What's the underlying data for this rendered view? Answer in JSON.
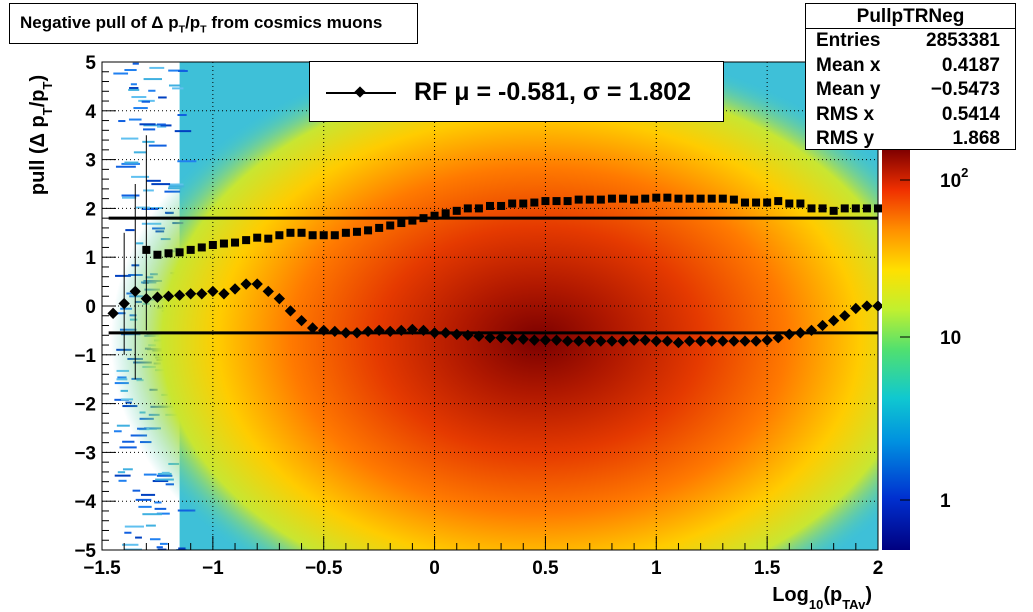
{
  "title": "Negative pull of Δ p_T/p_T from cosmics muons",
  "stats": {
    "name": "PullpTRNeg",
    "rows": [
      {
        "label": "Entries",
        "value": "2853381"
      },
      {
        "label": "Mean x",
        "value": "0.4187"
      },
      {
        "label": "Mean y",
        "value": "−0.5473"
      },
      {
        "label": "RMS x",
        "value": "0.5414"
      },
      {
        "label": "RMS y",
        "value": "1.868"
      }
    ]
  },
  "legend": {
    "text": "RF μ = -0.581, σ =   1.802"
  },
  "colors": {
    "marker": "#000000",
    "line": "#000000"
  },
  "chart_data": {
    "type": "heatmap",
    "title": "Negative pull of Δ p_T/p_T from cosmics muons",
    "xlabel": "Log10(pTAv)",
    "ylabel": "pull (Δ pT/pT)",
    "xlim": [
      -1.5,
      2
    ],
    "ylim": [
      -5,
      5
    ],
    "x_ticks": [
      "−1.5",
      "−1",
      "−0.5",
      "0",
      "0.5",
      "1",
      "1.5",
      "2"
    ],
    "y_ticks": [
      "−5",
      "−4",
      "−3",
      "−2",
      "−1",
      "0",
      "1",
      "2",
      "3",
      "4",
      "5"
    ],
    "colorbar": {
      "scale": "log",
      "labels": [
        "1",
        "10",
        "10^2"
      ]
    },
    "grid": true,
    "horizontal_lines": [
      1.8,
      -0.55
    ],
    "series": [
      {
        "marker": "square",
        "x": [
          -1.3,
          -1.25,
          -1.2,
          -1.15,
          -1.1,
          -1.05,
          -1.0,
          -0.95,
          -0.9,
          -0.85,
          -0.8,
          -0.75,
          -0.7,
          -0.65,
          -0.6,
          -0.55,
          -0.5,
          -0.45,
          -0.4,
          -0.35,
          -0.3,
          -0.25,
          -0.2,
          -0.15,
          -0.1,
          -0.05,
          0.0,
          0.05,
          0.1,
          0.15,
          0.2,
          0.25,
          0.3,
          0.35,
          0.4,
          0.45,
          0.5,
          0.55,
          0.6,
          0.65,
          0.7,
          0.75,
          0.8,
          0.85,
          0.9,
          0.95,
          1.0,
          1.05,
          1.1,
          1.15,
          1.2,
          1.25,
          1.3,
          1.35,
          1.4,
          1.45,
          1.5,
          1.55,
          1.6,
          1.65,
          1.7,
          1.75,
          1.8,
          1.85,
          1.9,
          1.95,
          2.0
        ],
        "y": [
          1.15,
          1.05,
          1.08,
          1.1,
          1.15,
          1.2,
          1.25,
          1.28,
          1.3,
          1.35,
          1.4,
          1.38,
          1.45,
          1.5,
          1.5,
          1.45,
          1.45,
          1.45,
          1.5,
          1.52,
          1.55,
          1.6,
          1.65,
          1.7,
          1.75,
          1.8,
          1.85,
          1.9,
          1.95,
          2.0,
          2.0,
          2.05,
          2.05,
          2.1,
          2.1,
          2.12,
          2.15,
          2.15,
          2.15,
          2.18,
          2.18,
          2.18,
          2.2,
          2.2,
          2.18,
          2.2,
          2.22,
          2.22,
          2.2,
          2.2,
          2.2,
          2.2,
          2.2,
          2.18,
          2.12,
          2.12,
          2.12,
          2.15,
          2.1,
          2.1,
          2.0,
          2.0,
          1.95,
          2.0,
          2.0,
          2.0,
          2.0
        ]
      },
      {
        "marker": "diamond",
        "x": [
          -1.45,
          -1.4,
          -1.35,
          -1.3,
          -1.25,
          -1.2,
          -1.15,
          -1.1,
          -1.05,
          -1.0,
          -0.95,
          -0.9,
          -0.85,
          -0.8,
          -0.75,
          -0.7,
          -0.65,
          -0.6,
          -0.55,
          -0.5,
          -0.45,
          -0.4,
          -0.35,
          -0.3,
          -0.25,
          -0.2,
          -0.15,
          -0.1,
          -0.05,
          0.0,
          0.05,
          0.1,
          0.15,
          0.2,
          0.25,
          0.3,
          0.35,
          0.4,
          0.45,
          0.5,
          0.55,
          0.6,
          0.65,
          0.7,
          0.75,
          0.8,
          0.85,
          0.9,
          0.95,
          1.0,
          1.05,
          1.1,
          1.15,
          1.2,
          1.25,
          1.3,
          1.35,
          1.4,
          1.45,
          1.5,
          1.55,
          1.6,
          1.65,
          1.7,
          1.75,
          1.8,
          1.85,
          1.9,
          1.95,
          2.0
        ],
        "y": [
          -0.15,
          0.05,
          0.3,
          0.15,
          0.18,
          0.2,
          0.22,
          0.25,
          0.25,
          0.3,
          0.25,
          0.35,
          0.45,
          0.45,
          0.3,
          0.15,
          -0.1,
          -0.3,
          -0.45,
          -0.5,
          -0.52,
          -0.55,
          -0.55,
          -0.52,
          -0.5,
          -0.52,
          -0.5,
          -0.48,
          -0.5,
          -0.55,
          -0.55,
          -0.58,
          -0.6,
          -0.62,
          -0.65,
          -0.65,
          -0.68,
          -0.68,
          -0.7,
          -0.7,
          -0.7,
          -0.72,
          -0.72,
          -0.72,
          -0.72,
          -0.72,
          -0.72,
          -0.7,
          -0.7,
          -0.72,
          -0.72,
          -0.75,
          -0.72,
          -0.72,
          -0.72,
          -0.72,
          -0.72,
          -0.72,
          -0.72,
          -0.7,
          -0.65,
          -0.58,
          -0.55,
          -0.5,
          -0.4,
          -0.3,
          -0.2,
          -0.05,
          0.0,
          0.0
        ]
      }
    ]
  }
}
